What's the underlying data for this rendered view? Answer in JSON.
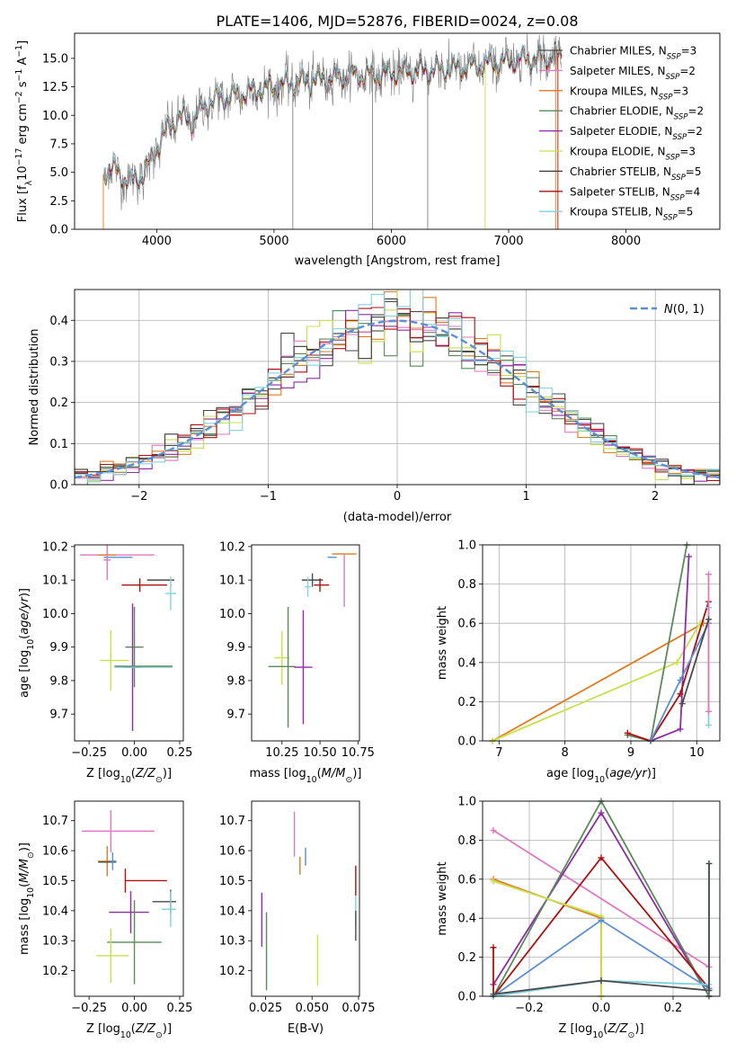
{
  "title": "PLATE=1406, MJD=52876, FIBERID=0024, z=0.08",
  "colors": {
    "chabrier_miles": "#4a4a4a",
    "salpeter_miles": "#e377c2",
    "kroupa_miles": "#e07b20",
    "chabrier_elodie": "#5a8a5a",
    "salpeter_elodie": "#8e2ca8",
    "kroupa_elodie": "#c8e04a",
    "chabrier_stelib": "#3a3a3a",
    "salpeter_stelib": "#b01010",
    "kroupa_stelib": "#7fd3e0",
    "observed": "#808080",
    "normal_curve": "#5b8fd6"
  },
  "chart_data": [
    {
      "id": "spectrum",
      "type": "line",
      "xlabel": "wavelength [Angstrom, rest frame]",
      "ylabel": "Flux [f_λ10^-17 erg cm^-2 s^-1 A^-1]",
      "xlim": [
        3300,
        8800
      ],
      "ylim": [
        0,
        17.2
      ],
      "xticks": [
        4000,
        5000,
        6000,
        7000,
        8000
      ],
      "yticks": [
        0.0,
        2.5,
        5.0,
        7.5,
        10.0,
        12.5,
        15.0
      ],
      "legend_position": "top-right",
      "legend": [
        "Chabrier MILES, N_SSP=3",
        "Salpeter MILES, N_SSP=2",
        "Kroupa MILES, N_SSP=3",
        "Chabrier ELODIE, N_SSP=2",
        "Salpeter ELODIE, N_SSP=2",
        "Kroupa ELODIE, N_SSP=3",
        "Chabrier STELIB, N_SSP=5",
        "Salpeter STELIB, N_SSP=4",
        "Kroupa STELIB, N_SSP=5"
      ],
      "continuum": {
        "x": [
          3550,
          3600,
          3700,
          3800,
          3900,
          4000,
          4100,
          4200,
          4300,
          4400,
          4500,
          4700,
          4900,
          5100,
          5300,
          5500,
          5700,
          5900,
          6100,
          6300,
          6500,
          6700,
          6900,
          7100,
          7300,
          7400
        ],
        "y": [
          4.8,
          5.6,
          4.6,
          4.2,
          5.0,
          7.1,
          8.9,
          9.9,
          9.4,
          10.8,
          11.4,
          11.8,
          12.3,
          12.7,
          13.1,
          13.3,
          13.5,
          13.6,
          13.8,
          14.0,
          14.1,
          14.3,
          14.6,
          14.9,
          15.1,
          15.2
        ]
      }
    },
    {
      "id": "residuals",
      "type": "histogram",
      "xlabel": "(data-model)/error",
      "ylabel": "Normed distribution",
      "xlim": [
        -2.5,
        2.5
      ],
      "ylim": [
        0,
        0.475
      ],
      "xticks": [
        -2,
        -1,
        0,
        1,
        2
      ],
      "yticks": [
        0.0,
        0.1,
        0.2,
        0.3,
        0.4
      ],
      "grid": true,
      "legend_position": "top-right",
      "normal_label": "N(0,1)",
      "bin_width": 0.1
    },
    {
      "id": "age_vs_Z",
      "type": "errorbar",
      "xlabel": "Z [log10(Z/Z⊙)]",
      "ylabel": "age [log10(age/yr)]",
      "xlim": [
        -0.33,
        0.27
      ],
      "ylim": [
        9.62,
        10.205
      ],
      "xticks": [
        -0.25,
        0.0,
        0.25
      ],
      "xticklabels": [
        "−0.25",
        "0.00",
        "0.25"
      ],
      "yticks": [
        9.7,
        9.8,
        9.9,
        10.0,
        10.1,
        10.2
      ],
      "points": [
        {
          "x": -0.17,
          "xerr": [
            0.13,
            0.28
          ],
          "y": 10.175,
          "yerr": 0.0,
          "c": "salpeter_miles"
        },
        {
          "x": -0.15,
          "xerr": [
            0.05,
            0.05
          ],
          "y": 10.175,
          "yerr": 0.01,
          "c": "kroupa_miles"
        },
        {
          "x": -0.1,
          "xerr": [
            0.07,
            0.09
          ],
          "y": 10.168,
          "yerr": 0.0,
          "c": "normal_curve"
        },
        {
          "x": 0.17,
          "xerr": [
            0.1,
            0.05
          ],
          "y": 10.1,
          "yerr": 0.0,
          "c": "chabrier_miles"
        },
        {
          "x": 0.03,
          "xerr": [
            0.1,
            0.15
          ],
          "y": 10.085,
          "yerr": 0.02,
          "c": "salpeter_stelib"
        },
        {
          "x": 0.2,
          "xerr": [
            0.03,
            0.03
          ],
          "y": 10.06,
          "yerr": 0.05,
          "c": "kroupa_stelib"
        },
        {
          "x": -0.15,
          "xerr": [
            0.02,
            0.02
          ],
          "y": 10.16,
          "yerr": 0.06,
          "c": "salpeter_miles"
        },
        {
          "x": -0.13,
          "xerr": [
            0.06,
            0.1
          ],
          "y": 9.86,
          "yerr": 0.09,
          "c": "kroupa_elodie"
        },
        {
          "x": 0.0,
          "xerr": [
            0.05,
            0.05
          ],
          "y": 9.9,
          "yerr": 0.12,
          "c": "chabrier_elodie"
        },
        {
          "x": -0.01,
          "xerr": [
            0.05,
            0.05
          ],
          "y": 9.84,
          "yerr": 0.19,
          "c": "salpeter_elodie"
        },
        {
          "x": 0.05,
          "xerr": [
            0.16,
            0.16
          ],
          "y": 9.84,
          "yerr": 0.0,
          "c": "kroupa_stelib"
        },
        {
          "x": 0.05,
          "xerr": [
            0.16,
            0.16
          ],
          "y": 9.843,
          "yerr": 0.0,
          "c": "chabrier_elodie"
        }
      ]
    },
    {
      "id": "age_vs_mass",
      "type": "errorbar",
      "xlabel": "mass [log10(M/M⊙)]",
      "ylabel": "",
      "xlim": [
        10.05,
        10.76
      ],
      "ylim": [
        9.62,
        10.205
      ],
      "xticks": [
        10.25,
        10.5,
        10.75
      ],
      "xticklabels": [
        "10.25",
        "10.50",
        "10.75"
      ],
      "yticks": [
        9.7,
        9.8,
        9.9,
        10.0,
        10.1,
        10.2
      ],
      "points": [
        {
          "x": 10.66,
          "xerr": [
            0.08,
            0.08
          ],
          "y": 10.178,
          "yerr": 0.0,
          "c": "kroupa_miles"
        },
        {
          "x": 10.66,
          "xerr": [
            0.0,
            0.0
          ],
          "y": 10.1,
          "yerr": 0.08,
          "c": "salpeter_miles"
        },
        {
          "x": 10.58,
          "xerr": [
            0.03,
            0.03
          ],
          "y": 10.168,
          "yerr": 0.0,
          "c": "normal_curve"
        },
        {
          "x": 10.45,
          "xerr": [
            0.07,
            0.07
          ],
          "y": 10.1,
          "yerr": 0.02,
          "c": "chabrier_miles"
        },
        {
          "x": 10.5,
          "xerr": [
            0.04,
            0.06
          ],
          "y": 10.085,
          "yerr": 0.02,
          "c": "salpeter_stelib"
        },
        {
          "x": 10.42,
          "xerr": [
            0.02,
            0.02
          ],
          "y": 10.08,
          "yerr": 0.03,
          "c": "kroupa_stelib"
        },
        {
          "x": 10.25,
          "xerr": [
            0.05,
            0.05
          ],
          "y": 9.868,
          "yerr": 0.08,
          "c": "kroupa_elodie"
        },
        {
          "x": 10.29,
          "xerr": [
            0.0,
            0.0
          ],
          "y": 9.84,
          "yerr": 0.18,
          "c": "chabrier_elodie"
        },
        {
          "x": 10.39,
          "xerr": [
            0.06,
            0.06
          ],
          "y": 9.84,
          "yerr": 0.17,
          "c": "salpeter_elodie"
        },
        {
          "x": 10.25,
          "xerr": [
            0.09,
            0.09
          ],
          "y": 9.842,
          "yerr": 0.0,
          "c": "chabrier_elodie"
        }
      ]
    },
    {
      "id": "massweight_vs_age",
      "type": "line",
      "xlabel": "age  [log10(age/yr)]",
      "ylabel": "mass weight",
      "xlim": [
        6.75,
        10.35
      ],
      "ylim": [
        0,
        1.0
      ],
      "xticks": [
        7,
        8,
        9,
        10
      ],
      "yticks": [
        0.0,
        0.2,
        0.4,
        0.6,
        0.8,
        1.0
      ],
      "grid": true,
      "series": [
        {
          "c": "kroupa_miles",
          "x": [
            6.9,
            10.1
          ],
          "y": [
            0.0,
            0.6
          ]
        },
        {
          "c": "kroupa_elodie",
          "x": [
            6.9,
            9.7,
            10.05
          ],
          "y": [
            0.0,
            0.4,
            0.6
          ]
        },
        {
          "c": "chabrier_elodie",
          "x": [
            8.95,
            9.3,
            9.85
          ],
          "y": [
            0.03,
            0.0,
            1.0
          ]
        },
        {
          "c": "salpeter_elodie",
          "x": [
            9.3,
            9.75,
            9.88
          ],
          "y": [
            0.0,
            0.06,
            0.94
          ]
        },
        {
          "c": "salpeter_stelib",
          "x": [
            8.95,
            9.3,
            9.75,
            10.18
          ],
          "y": [
            0.04,
            0.0,
            0.24,
            0.71
          ]
        },
        {
          "c": "normal_curve",
          "x": [
            9.3,
            9.75,
            10.18
          ],
          "y": [
            0.0,
            0.31,
            0.6
          ]
        },
        {
          "c": "kroupa_stelib",
          "x": [
            10.18,
            10.18
          ],
          "y": [
            0.08,
            0.68
          ]
        },
        {
          "c": "salpeter_miles",
          "x": [
            10.18,
            10.18
          ],
          "y": [
            0.15,
            0.85
          ]
        },
        {
          "c": "chabrier_miles",
          "x": [
            9.78,
            10.18
          ],
          "y": [
            0.19,
            0.62
          ]
        }
      ]
    },
    {
      "id": "mass_vs_Z",
      "type": "errorbar",
      "xlabel": "Z [log10(Z/Z⊙)]",
      "ylabel": "mass [log10(M/M⊙)]",
      "xlim": [
        -0.33,
        0.27
      ],
      "ylim": [
        10.115,
        10.765
      ],
      "xticks": [
        -0.25,
        0.0,
        0.25
      ],
      "xticklabels": [
        "−0.25",
        "0.00",
        "0.25"
      ],
      "yticks": [
        10.2,
        10.3,
        10.4,
        10.5,
        10.6,
        10.7
      ],
      "points": [
        {
          "x": -0.13,
          "xerr": [
            0.16,
            0.24
          ],
          "y": 10.665,
          "yerr": 0.07,
          "c": "salpeter_miles"
        },
        {
          "x": -0.15,
          "xerr": [
            0.05,
            0.05
          ],
          "y": 10.565,
          "yerr": 0.05,
          "c": "kroupa_miles"
        },
        {
          "x": -0.15,
          "xerr": [
            0.05,
            0.05
          ],
          "y": 10.562,
          "yerr": 0.0,
          "c": "chabrier_miles"
        },
        {
          "x": -0.12,
          "xerr": [
            0.02,
            0.02
          ],
          "y": 10.565,
          "yerr": 0.03,
          "c": "normal_curve"
        },
        {
          "x": -0.05,
          "xerr": [
            0.0,
            0.23
          ],
          "y": 10.5,
          "yerr": 0.04,
          "c": "salpeter_stelib"
        },
        {
          "x": 0.2,
          "xerr": [
            0.1,
            0.03
          ],
          "y": 10.43,
          "yerr": 0.04,
          "c": "chabrier_miles"
        },
        {
          "x": 0.2,
          "xerr": [
            0.05,
            0.03
          ],
          "y": 10.405,
          "yerr": 0.06,
          "c": "kroupa_stelib"
        },
        {
          "x": -0.02,
          "xerr": [
            0.12,
            0.1
          ],
          "y": 10.395,
          "yerr": 0.07,
          "c": "salpeter_elodie"
        },
        {
          "x": 0.0,
          "xerr": [
            0.15,
            0.15
          ],
          "y": 10.295,
          "yerr": 0.14,
          "c": "chabrier_elodie"
        },
        {
          "x": -0.13,
          "xerr": [
            0.08,
            0.1
          ],
          "y": 10.25,
          "yerr": 0.09,
          "c": "kroupa_elodie"
        }
      ]
    },
    {
      "id": "mass_vs_ebv",
      "type": "errorbar",
      "xlabel": "E(B-V)",
      "ylabel": "",
      "xlim": [
        0.0175,
        0.0755
      ],
      "ylim": [
        10.115,
        10.765
      ],
      "xticks": [
        0.025,
        0.05,
        0.075
      ],
      "xticklabels": [
        "0.025",
        "0.050",
        "0.075"
      ],
      "yticks": [
        10.2,
        10.3,
        10.4,
        10.5,
        10.6,
        10.7
      ],
      "points": [
        {
          "x": 0.0405,
          "xerr": [
            0.0,
            0.0
          ],
          "y": 10.655,
          "yerr": 0.075,
          "c": "salpeter_miles"
        },
        {
          "x": 0.0435,
          "xerr": [
            0.0,
            0.0
          ],
          "y": 10.55,
          "yerr": 0.03,
          "c": "kroupa_miles"
        },
        {
          "x": 0.0465,
          "xerr": [
            0.0,
            0.0
          ],
          "y": 10.58,
          "yerr": 0.03,
          "c": "normal_curve"
        },
        {
          "x": 0.0735,
          "xerr": [
            0.0,
            0.0
          ],
          "y": 10.5,
          "yerr": 0.05,
          "c": "salpeter_stelib"
        },
        {
          "x": 0.0735,
          "xerr": [
            0.0,
            0.0
          ],
          "y": 10.4,
          "yerr": 0.05,
          "c": "kroupa_stelib"
        },
        {
          "x": 0.0735,
          "xerr": [
            0.0,
            0.0
          ],
          "y": 10.35,
          "yerr": 0.05,
          "c": "chabrier_miles"
        },
        {
          "x": 0.023,
          "xerr": [
            0.0,
            0.0
          ],
          "y": 10.37,
          "yerr": 0.09,
          "c": "salpeter_elodie"
        },
        {
          "x": 0.0255,
          "xerr": [
            0.0,
            0.0
          ],
          "y": 10.265,
          "yerr": 0.13,
          "c": "chabrier_elodie"
        },
        {
          "x": 0.053,
          "xerr": [
            0.0,
            0.0
          ],
          "y": 10.235,
          "yerr": 0.085,
          "c": "kroupa_elodie"
        }
      ]
    },
    {
      "id": "massweight_vs_Z",
      "type": "line",
      "xlabel": "Z [log10(Z/Z⊙)]",
      "ylabel": "mass weight",
      "xlim": [
        -0.33,
        0.33
      ],
      "ylim": [
        0,
        1.0
      ],
      "xticks": [
        -0.2,
        0.0,
        0.2
      ],
      "xticklabels": [
        "−0.2",
        "0.0",
        "0.2"
      ],
      "yticks": [
        0.0,
        0.2,
        0.4,
        0.6,
        0.8,
        1.0
      ],
      "grid": true,
      "series": [
        {
          "c": "salpeter_miles",
          "x": [
            -0.3,
            0.3
          ],
          "y": [
            0.85,
            0.15
          ]
        },
        {
          "c": "salpeter_elodie",
          "x": [
            -0.3,
            0.0,
            0.3
          ],
          "y": [
            0.06,
            0.94,
            0.0
          ]
        },
        {
          "c": "chabrier_elodie",
          "x": [
            -0.3,
            0.0,
            0.3
          ],
          "y": [
            0.0,
            1.0,
            0.0
          ]
        },
        {
          "c": "salpeter_stelib",
          "x": [
            -0.3,
            -0.3,
            0.0,
            0.3
          ],
          "y": [
            0.25,
            0.0,
            0.71,
            0.04
          ]
        },
        {
          "c": "kroupa_miles",
          "x": [
            -0.3,
            0.0,
            0.0
          ],
          "y": [
            0.6,
            0.4,
            0.0
          ]
        },
        {
          "c": "kroupa_elodie",
          "x": [
            -0.3,
            0.0,
            0.0
          ],
          "y": [
            0.59,
            0.41,
            0.0
          ]
        },
        {
          "c": "normal_curve",
          "x": [
            -0.3,
            0.0,
            0.3
          ],
          "y": [
            0.0,
            0.39,
            0.04
          ]
        },
        {
          "c": "kroupa_stelib",
          "x": [
            -0.3,
            0.0,
            0.3,
            0.3
          ],
          "y": [
            0.0,
            0.08,
            0.06,
            0.68
          ]
        },
        {
          "c": "chabrier_miles",
          "x": [
            -0.3,
            0.0,
            0.3,
            0.3
          ],
          "y": [
            0.01,
            0.08,
            0.03,
            0.68
          ]
        }
      ]
    }
  ]
}
